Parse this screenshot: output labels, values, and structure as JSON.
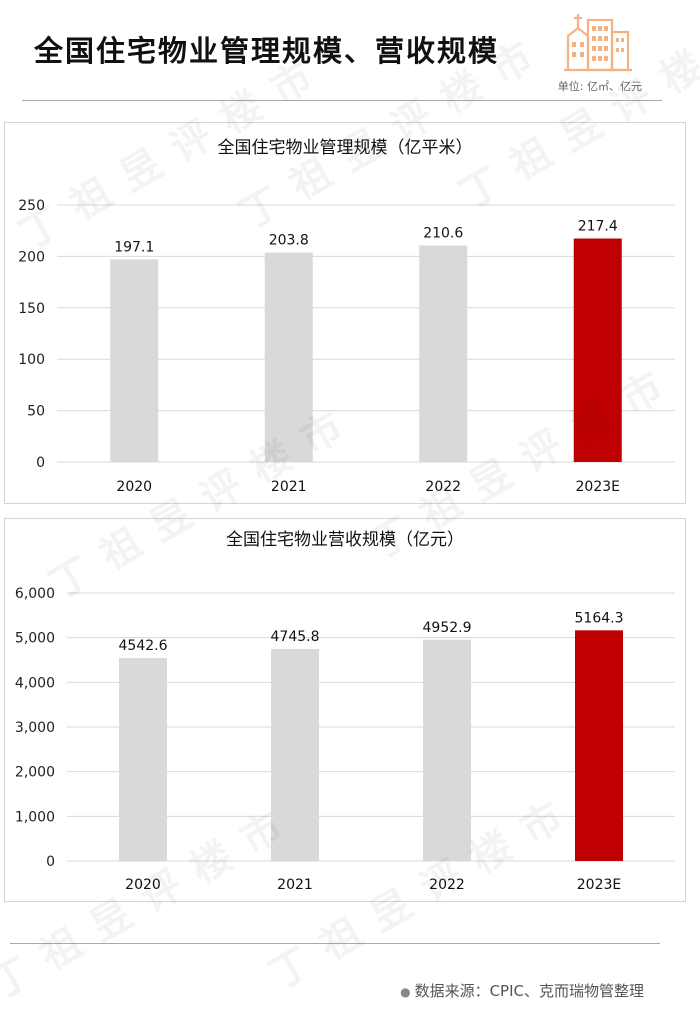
{
  "header": {
    "title": "全国住宅物业管理规模、营收规模",
    "unit_note": "单位: 亿㎡、亿元",
    "logo_icon": "city-buildings-icon"
  },
  "colors": {
    "bar_default": "#d9d9d9",
    "bar_highlight": "#c00000",
    "grid": "#d9d9d9",
    "logo": "#f4b183"
  },
  "chart_data": [
    {
      "type": "bar",
      "title": "全国住宅物业管理规模（亿平米）",
      "categories": [
        "2020",
        "2021",
        "2022",
        "2023E"
      ],
      "values": [
        197.1,
        203.8,
        210.6,
        217.4
      ],
      "value_labels": [
        "197.1",
        "203.8",
        "210.6",
        "217.4"
      ],
      "ylim": [
        0,
        250
      ],
      "yticks": [
        0,
        50,
        100,
        150,
        200,
        250
      ],
      "ytick_labels": [
        "0",
        "50",
        "100",
        "150",
        "200",
        "250"
      ],
      "highlight_index": 3,
      "grid": true,
      "legend": false
    },
    {
      "type": "bar",
      "title": "全国住宅物业营收规模（亿元）",
      "categories": [
        "2020",
        "2021",
        "2022",
        "2023E"
      ],
      "values": [
        4542.6,
        4745.8,
        4952.9,
        5164.3
      ],
      "value_labels": [
        "4542.6",
        "4745.8",
        "4952.9",
        "5164.3"
      ],
      "ylim": [
        0,
        6000
      ],
      "yticks": [
        0,
        1000,
        2000,
        3000,
        4000,
        5000,
        6000
      ],
      "ytick_labels": [
        "0",
        "1,000",
        "2,000",
        "3,000",
        "4,000",
        "5,000",
        "6,000"
      ],
      "highlight_index": 3,
      "grid": true,
      "legend": false
    }
  ],
  "footer": {
    "source": "数据来源：CPIC、克而瑞物管整理",
    "watermark": "丁祖昱评楼市"
  }
}
